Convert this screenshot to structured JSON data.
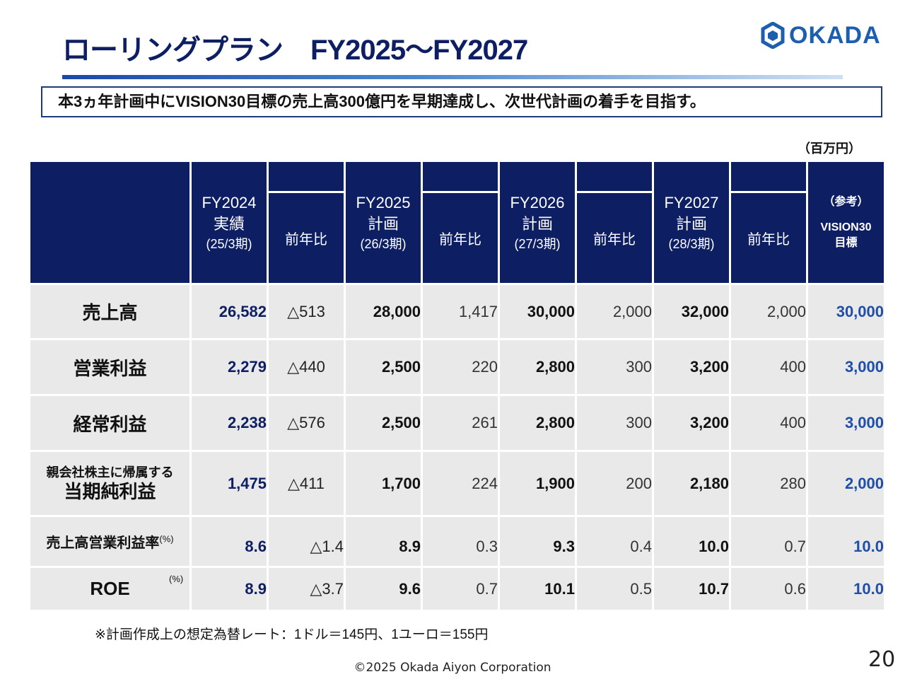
{
  "header": {
    "title": "ローリングプラン　FY2025～FY2027",
    "logo_text": "OKADA",
    "banner": "本3ヵ年計画中にVISION30目標の売上高300億円を早期達成し、次世代計画の着手を目指す。",
    "unit": "（百万円）"
  },
  "table": {
    "columns": {
      "fy2024": {
        "year": "FY2024",
        "kind": "実績",
        "period": "(25/3期)"
      },
      "yoy_label": "前年比",
      "fy2025": {
        "year": "FY2025",
        "kind": "計画",
        "period": "(26/3期)"
      },
      "fy2026": {
        "year": "FY2026",
        "kind": "計画",
        "period": "(27/3期)"
      },
      "fy2027": {
        "year": "FY2027",
        "kind": "計画",
        "period": "(28/3期)"
      },
      "vision": {
        "ref": "（参考）",
        "name": "VISION30",
        "label": "目標"
      }
    },
    "rows": [
      {
        "label": "売上高",
        "fy2024": "26,582",
        "fy2024_yoy": "△513",
        "fy2025": "28,000",
        "fy2025_yoy": "1,417",
        "fy2026": "30,000",
        "fy2026_yoy": "2,000",
        "fy2027": "32,000",
        "fy2027_yoy": "2,000",
        "vision": "30,000"
      },
      {
        "label": "営業利益",
        "fy2024": "2,279",
        "fy2024_yoy": "△440",
        "fy2025": "2,500",
        "fy2025_yoy": "220",
        "fy2026": "2,800",
        "fy2026_yoy": "300",
        "fy2027": "3,200",
        "fy2027_yoy": "400",
        "vision": "3,000"
      },
      {
        "label": "経常利益",
        "fy2024": "2,238",
        "fy2024_yoy": "△576",
        "fy2025": "2,500",
        "fy2025_yoy": "261",
        "fy2026": "2,800",
        "fy2026_yoy": "300",
        "fy2027": "3,200",
        "fy2027_yoy": "400",
        "vision": "3,000"
      },
      {
        "label_sub": "親会社株主に帰属する",
        "label": "当期純利益",
        "fy2024": "1,475",
        "fy2024_yoy": "△411",
        "fy2025": "1,700",
        "fy2025_yoy": "224",
        "fy2026": "1,900",
        "fy2026_yoy": "200",
        "fy2027": "2,180",
        "fy2027_yoy": "280",
        "vision": "2,000"
      },
      {
        "label": "売上高営業利益率",
        "unit": "(%)",
        "fy2024": "8.6",
        "fy2024_yoy": "△1.4",
        "fy2025": "8.9",
        "fy2025_yoy": "0.3",
        "fy2026": "9.3",
        "fy2026_yoy": "0.4",
        "fy2027": "10.0",
        "fy2027_yoy": "0.7",
        "vision": "10.0"
      },
      {
        "label": "ROE",
        "unit": "(%)",
        "fy2024": "8.9",
        "fy2024_yoy": "△3.7",
        "fy2025": "9.6",
        "fy2025_yoy": "0.7",
        "fy2026": "10.1",
        "fy2026_yoy": "0.5",
        "fy2027": "10.7",
        "fy2027_yoy": "0.6",
        "vision": "10.0"
      }
    ]
  },
  "footnote": "※計画作成上の想定為替レート：1ドル＝145円、1ユーロ＝155円",
  "copyright": "©2025 Okada Aiyon Corporation",
  "page_number": "20",
  "colors": {
    "navy": "#0d1f62",
    "accent_blue": "#1f4ea8",
    "row_bg": "#e9e9e9"
  }
}
